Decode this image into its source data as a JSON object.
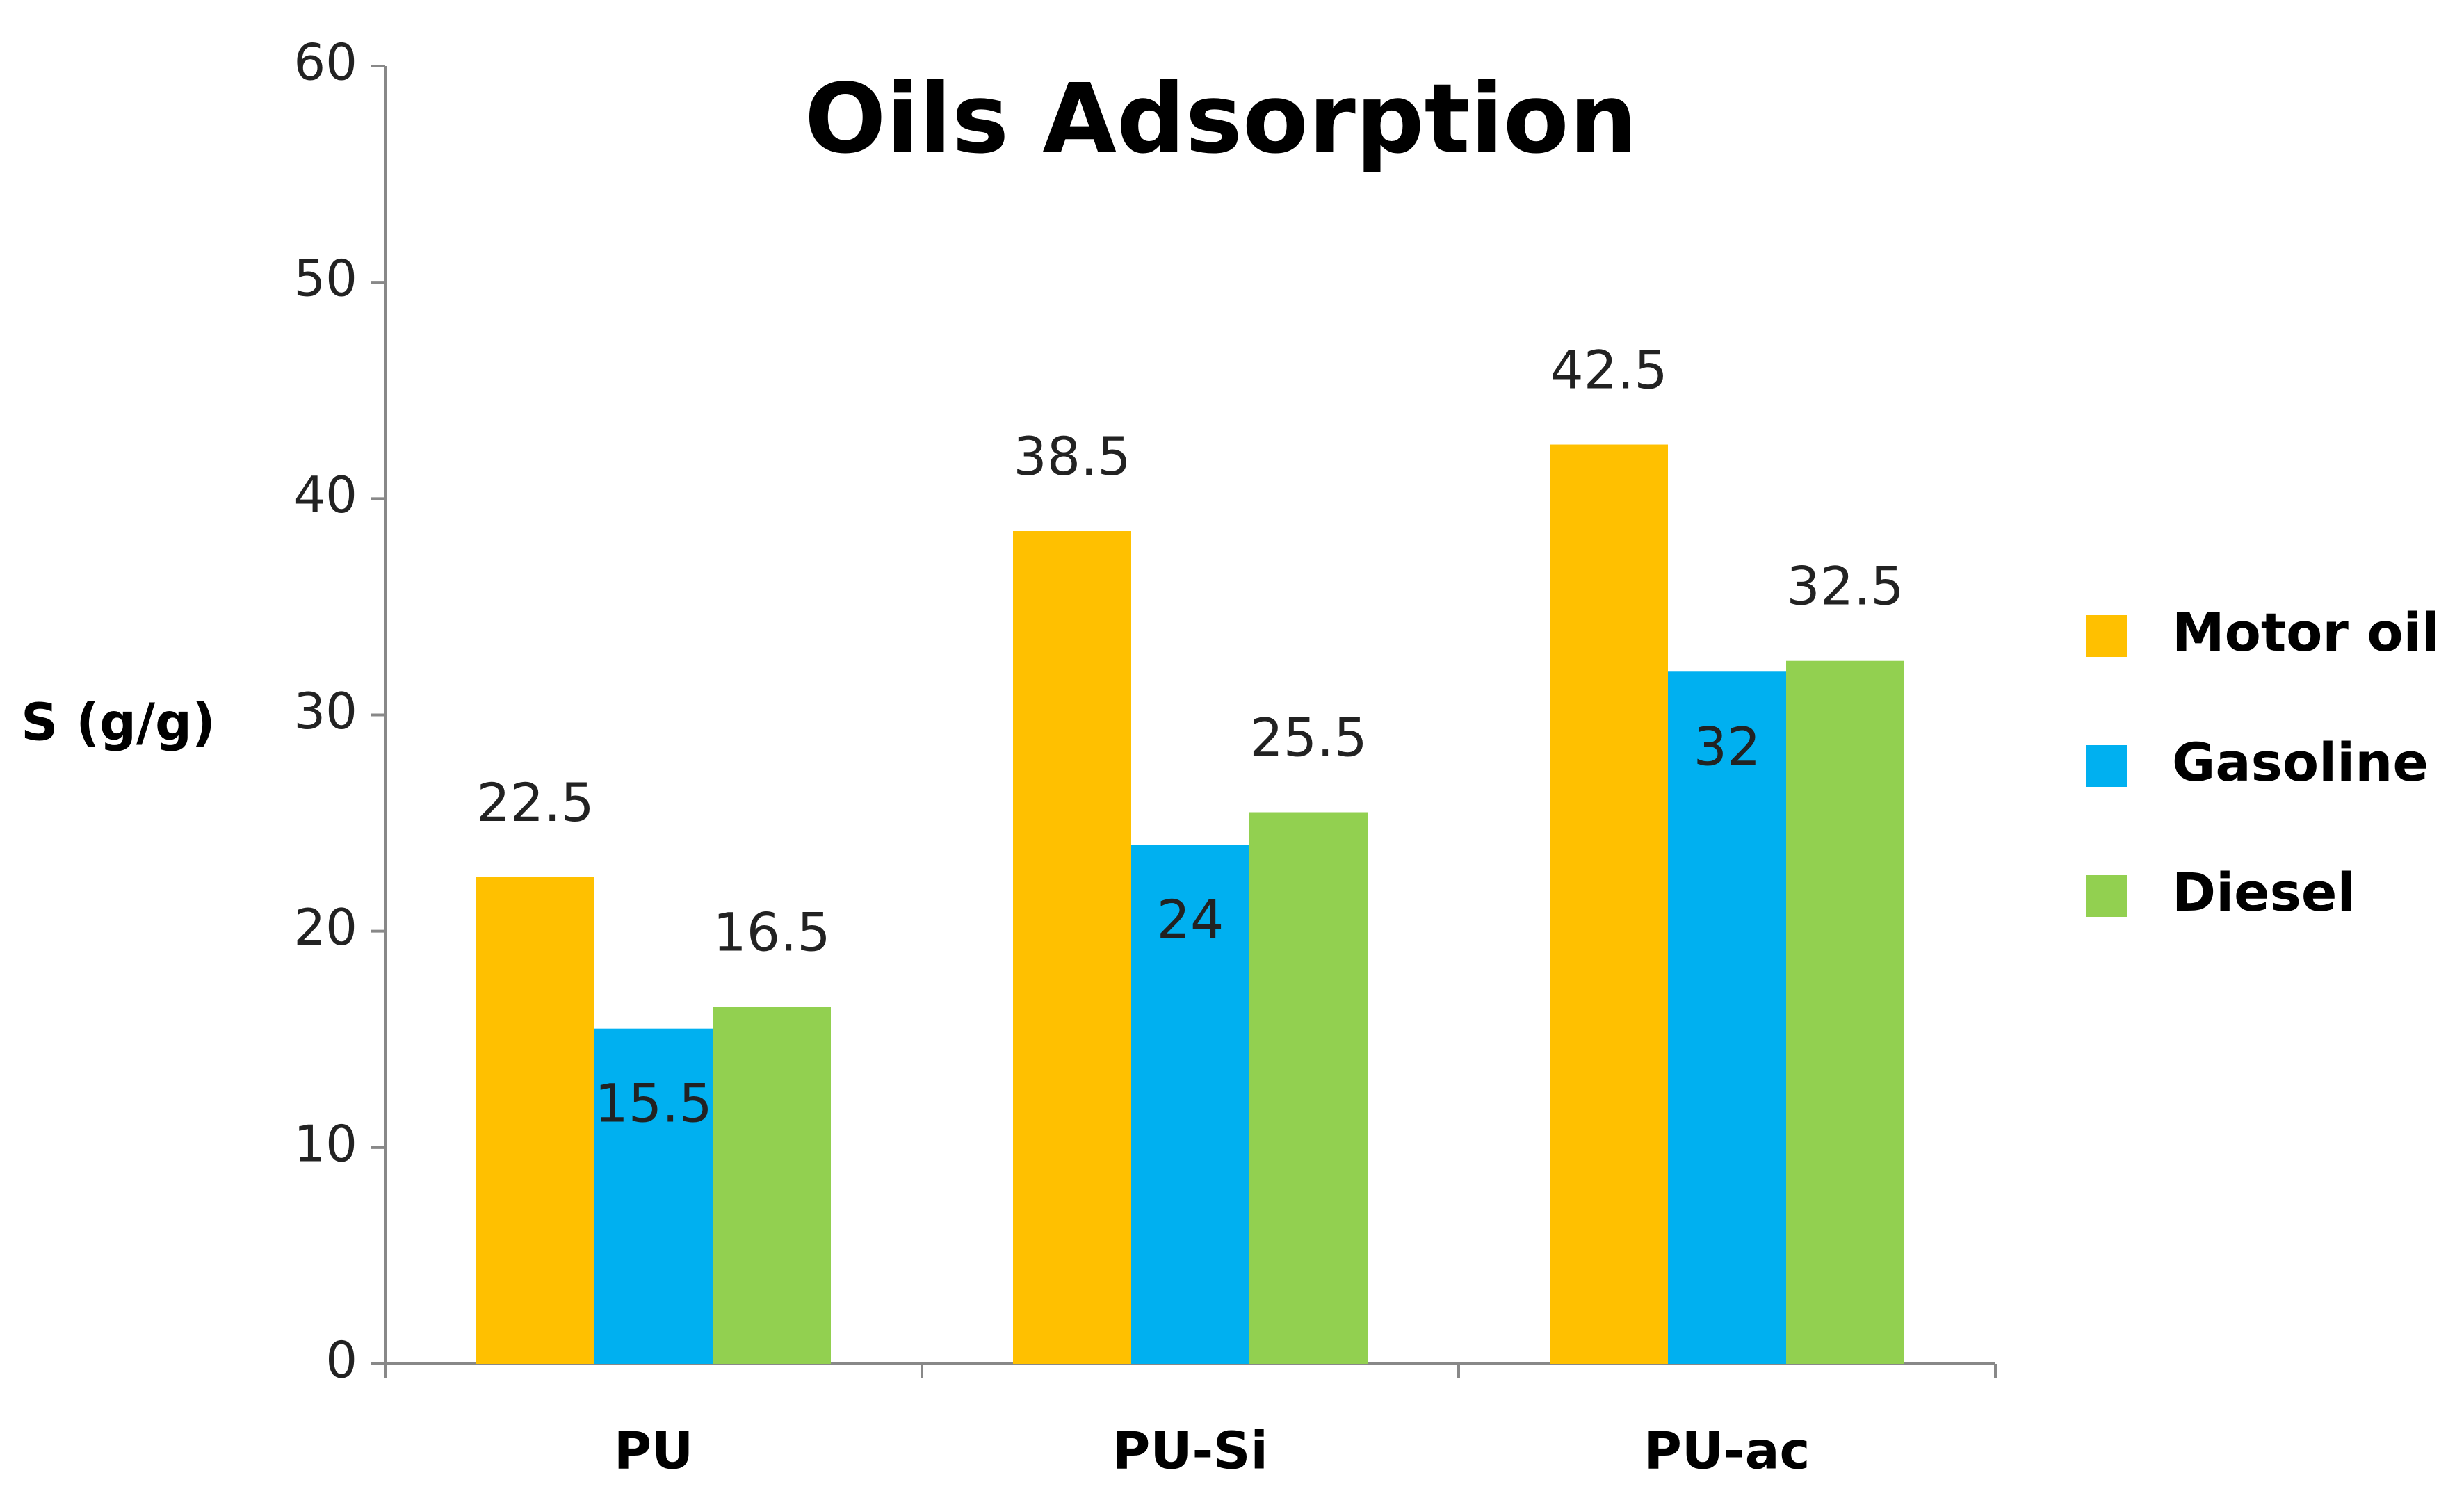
{
  "chart_data": {
    "type": "bar",
    "title": "Oils Adsorption",
    "y_label": "S (g/g)",
    "categories": [
      "PU",
      "PU-Si",
      "PU-ac"
    ],
    "series": [
      {
        "name": "Motor oil",
        "color": "#FFC000",
        "values": [
          22.5,
          38.5,
          42.5
        ],
        "label_position": "above"
      },
      {
        "name": "Gasoline",
        "color": "#00B0F0",
        "values": [
          15.5,
          24,
          32
        ],
        "label_position": "inside"
      },
      {
        "name": "Diesel",
        "color": "#92D050",
        "values": [
          16.5,
          25.5,
          32.5
        ],
        "label_position": "above"
      }
    ],
    "ylim": [
      0,
      60
    ],
    "yticks": [
      0,
      10,
      20,
      30,
      40,
      50,
      60
    ],
    "grid": false,
    "legend": "right"
  }
}
